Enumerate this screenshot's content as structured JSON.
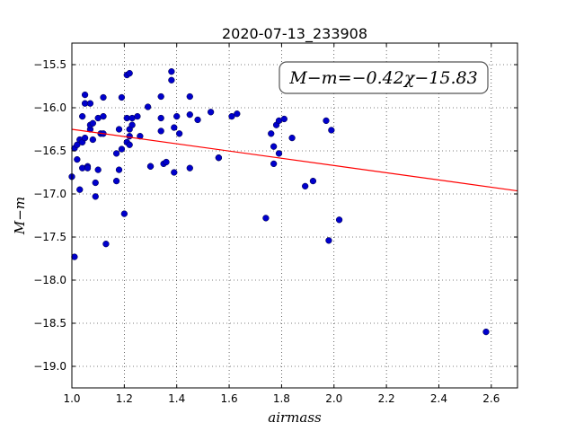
{
  "chart_data": {
    "type": "scatter",
    "title": "2020-07-13_233908",
    "xlabel": "airmass",
    "ylabel": "M−m",
    "xlim": [
      1.0,
      2.7
    ],
    "ylim": [
      -19.25,
      -15.25
    ],
    "y_inverted": false,
    "x_ticks": [
      "1.0",
      "1.2",
      "1.4",
      "1.6",
      "1.8",
      "2.0",
      "2.2",
      "2.4",
      "2.6"
    ],
    "y_ticks": [
      "−15.5",
      "−16.0",
      "−16.5",
      "−17.0",
      "−17.5",
      "−18.0",
      "−18.5",
      "−19.0"
    ],
    "grid": true,
    "annotation": "M−m=−0.42χ−15.83",
    "fit": {
      "slope": -0.42,
      "intercept": -15.83,
      "color": "#ff0000"
    },
    "marker_color": "#0000cc",
    "series": [
      {
        "x": [
          1.0,
          1.01,
          1.01,
          1.02,
          1.02,
          1.03,
          1.03,
          1.04,
          1.04,
          1.04,
          1.05,
          1.05,
          1.05,
          1.06,
          1.06,
          1.07,
          1.07,
          1.07,
          1.08,
          1.08,
          1.09,
          1.09,
          1.1,
          1.1,
          1.11,
          1.12,
          1.12,
          1.12,
          1.13,
          1.17,
          1.17,
          1.18,
          1.18,
          1.19,
          1.19,
          1.2,
          1.21,
          1.21,
          1.21,
          1.22,
          1.22,
          1.22,
          1.22,
          1.23,
          1.23,
          1.25,
          1.26,
          1.29,
          1.3,
          1.3,
          1.34,
          1.34,
          1.34,
          1.35,
          1.36,
          1.38,
          1.38,
          1.39,
          1.39,
          1.4,
          1.41,
          1.45,
          1.45,
          1.45,
          1.48,
          1.53,
          1.56,
          1.56,
          1.61,
          1.63,
          1.74,
          1.76,
          1.77,
          1.77,
          1.78,
          1.79,
          1.79,
          1.81,
          1.84,
          1.89,
          1.92,
          1.97,
          1.98,
          1.99,
          2.02,
          2.58
        ],
        "y": [
          -16.8,
          -16.47,
          -17.73,
          -16.43,
          -16.6,
          -16.37,
          -16.95,
          -16.7,
          -16.4,
          -16.1,
          -15.85,
          -15.95,
          -16.35,
          -16.68,
          -16.7,
          -16.25,
          -15.95,
          -16.2,
          -16.18,
          -16.37,
          -16.87,
          -17.03,
          -16.72,
          -16.12,
          -16.3,
          -16.1,
          -15.88,
          -16.3,
          -17.58,
          -16.53,
          -16.85,
          -16.72,
          -16.25,
          -16.48,
          -15.88,
          -17.23,
          -15.62,
          -16.12,
          -16.4,
          -15.6,
          -16.43,
          -16.25,
          -16.33,
          -16.12,
          -16.2,
          -16.1,
          -16.33,
          -15.99,
          -16.68,
          -16.68,
          -16.12,
          -16.27,
          -15.87,
          -16.65,
          -16.63,
          -15.58,
          -15.68,
          -16.23,
          -16.75,
          -16.1,
          -16.3,
          -16.08,
          -15.87,
          -16.7,
          -16.14,
          -16.05,
          -16.58,
          -16.58,
          -16.1,
          -16.07,
          -17.28,
          -16.3,
          -16.45,
          -16.65,
          -16.2,
          -16.15,
          -16.53,
          -16.13,
          -16.35,
          -16.91,
          -16.85,
          -16.15,
          -17.54,
          -16.26,
          -17.3,
          -18.6
        ]
      }
    ]
  }
}
